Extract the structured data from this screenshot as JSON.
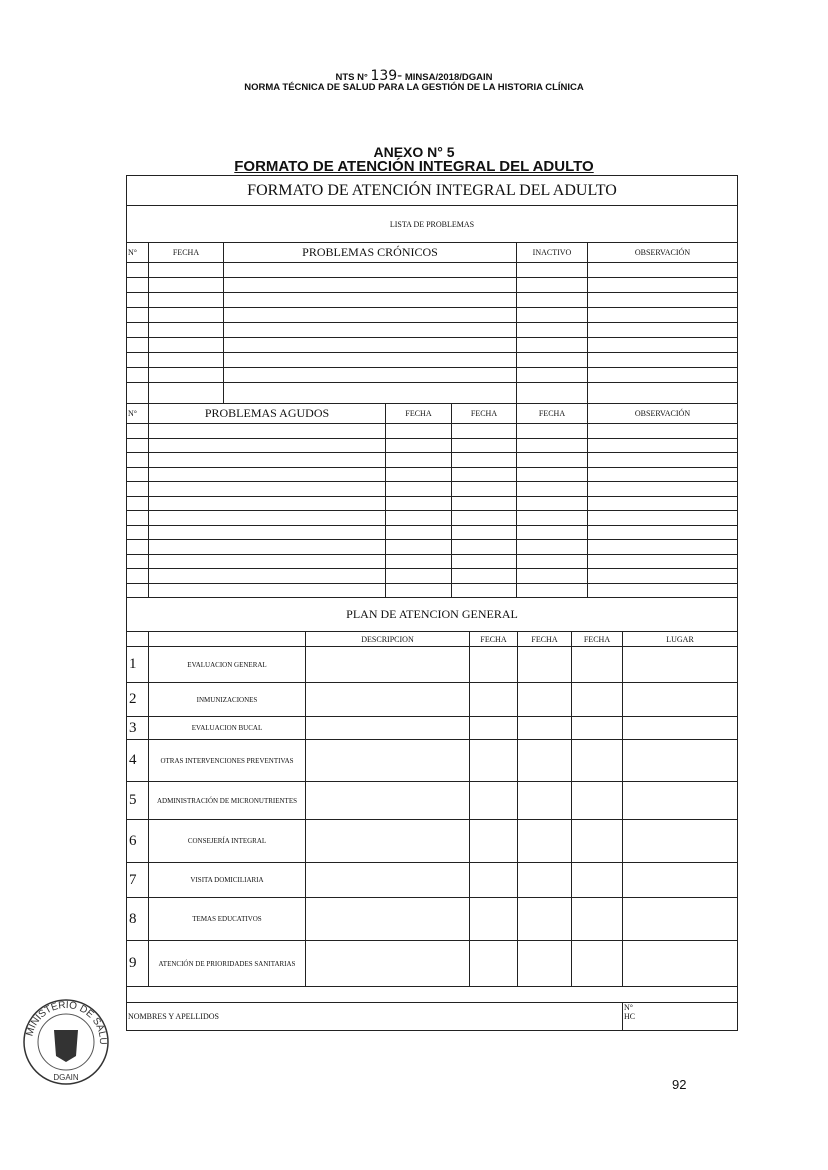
{
  "header": {
    "nts_prefix": "NTS N°",
    "nts_number": "139-",
    "nts_suffix": "MINSA/2018/DGAIN",
    "norma": "NORMA TÉCNICA DE SALUD PARA LA GESTIÓN DE LA HISTORIA CLÍNICA"
  },
  "annex": {
    "number": "ANEXO N° 5",
    "title": "FORMATO DE ATENCIÓN INTEGRAL DEL ADULTO"
  },
  "form": {
    "title": "FORMATO DE ATENCIÓN INTEGRAL DEL ADULTO",
    "lista_title": "LISTA DE PROBLEMAS",
    "chronic_headers": [
      "N°",
      "FECHA",
      "PROBLEMAS CRÓNICOS",
      "INACTIVO",
      "OBSERVACIÓN"
    ],
    "acute_headers": [
      "N°",
      "PROBLEMAS AGUDOS",
      "FECHA",
      "FECHA",
      "FECHA",
      "OBSERVACIÓN"
    ],
    "plan_title": "PLAN DE ATENCION GENERAL",
    "plan_headers": [
      "",
      "",
      "DESCRIPCION",
      "FECHA",
      "FECHA",
      "FECHA",
      "LUGAR"
    ],
    "plan_items": [
      {
        "num": "1",
        "label": "EVALUACION GENERAL"
      },
      {
        "num": "2",
        "label": "INMUNIZACIONES"
      },
      {
        "num": "3",
        "label": "EVALUACION BUCAL"
      },
      {
        "num": "4",
        "label": "OTRAS INTERVENCIONES PREVENTIVAS"
      },
      {
        "num": "5",
        "label": "ADMINISTRACIÓN DE MICRONUTRIENTES"
      },
      {
        "num": "6",
        "label": "CONSEJERÍA INTEGRAL"
      },
      {
        "num": "7",
        "label": "VISITA DOMICILIARIA"
      },
      {
        "num": "8",
        "label": "TEMAS EDUCATIVOS"
      },
      {
        "num": "9",
        "label": "ATENCIÓN DE PRIORIDADES SANITARIAS"
      }
    ],
    "nombres_label": "NOMBRES Y APELLIDOS",
    "hc_label_1": "N°",
    "hc_label_2": "HC"
  },
  "seal": {
    "text_top": "MINISTERIO DE SALUD",
    "text_bottom": "DGAIN"
  },
  "page_number": "92"
}
